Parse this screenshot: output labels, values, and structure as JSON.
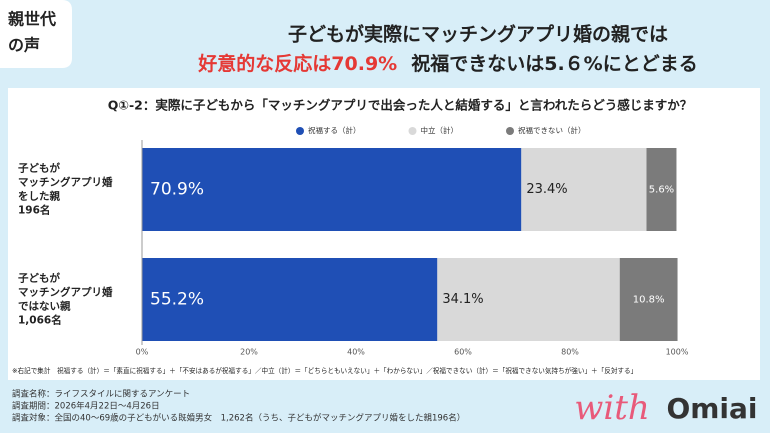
{
  "badge": [
    "親世代",
    "の声"
  ],
  "headline": {
    "line1": "子どもが実際にマッチングアプリ婚の親では",
    "highlight": "好意的な反応は70.9%",
    "rest": "祝福できないは5.６%にとどまる"
  },
  "chart_data": {
    "type": "stacked-barh",
    "title": "Q①-2：実際に子どもから「マッチングアプリで出会った人と結婚する」と言われたらどう感じますか？",
    "categories": [
      [
        "子どもが",
        "マッチングアプリ婚",
        "をした親",
        "196名"
      ],
      [
        "子どもが",
        "マッチングアプリ婚",
        "ではない親",
        "1,066名"
      ]
    ],
    "series": [
      {
        "name": "祝福する（計）",
        "color": "#1f4fb5",
        "values": [
          70.9,
          55.2
        ],
        "value_labels": [
          "70.9%",
          "55.2%"
        ]
      },
      {
        "name": "中立（計）",
        "color": "#d9d9d9",
        "values": [
          23.4,
          34.1
        ],
        "value_labels": [
          "23.4%",
          "34.1%"
        ]
      },
      {
        "name": "祝福できない（計）",
        "color": "#7b7b7b",
        "values": [
          5.6,
          10.8
        ],
        "value_labels": [
          "5.6%",
          "10.8%"
        ]
      }
    ],
    "xlim": [
      0,
      100
    ],
    "xticks": [
      {
        "value": 0,
        "label": "0%"
      },
      {
        "value": 20,
        "label": "20%"
      },
      {
        "value": 40,
        "label": "40%"
      },
      {
        "value": 60,
        "label": "60%"
      },
      {
        "value": 80,
        "label": "80%"
      },
      {
        "value": 100,
        "label": "100%"
      }
    ],
    "legend": "top",
    "footnote": "※右記で集計　祝福する（計）＝「素直に祝福する」＋「不安はあるが祝福する」／中立（計）＝「どちらともいえない」＋「わからない」／祝福できない（計）＝「祝福できない気持ちが強い」＋「反対する」"
  },
  "survey": [
    "調査名称：ライフスタイルに関するアンケート",
    "調査期間：2026年4月22日～4月26日",
    "調査対象：全国の40～69歳の子どもがいる既婚男女　1,262名（うち、子どもがマッチングアプリ婚をした親196名）"
  ],
  "logo": {
    "script": "with",
    "brand": "Omiai"
  }
}
